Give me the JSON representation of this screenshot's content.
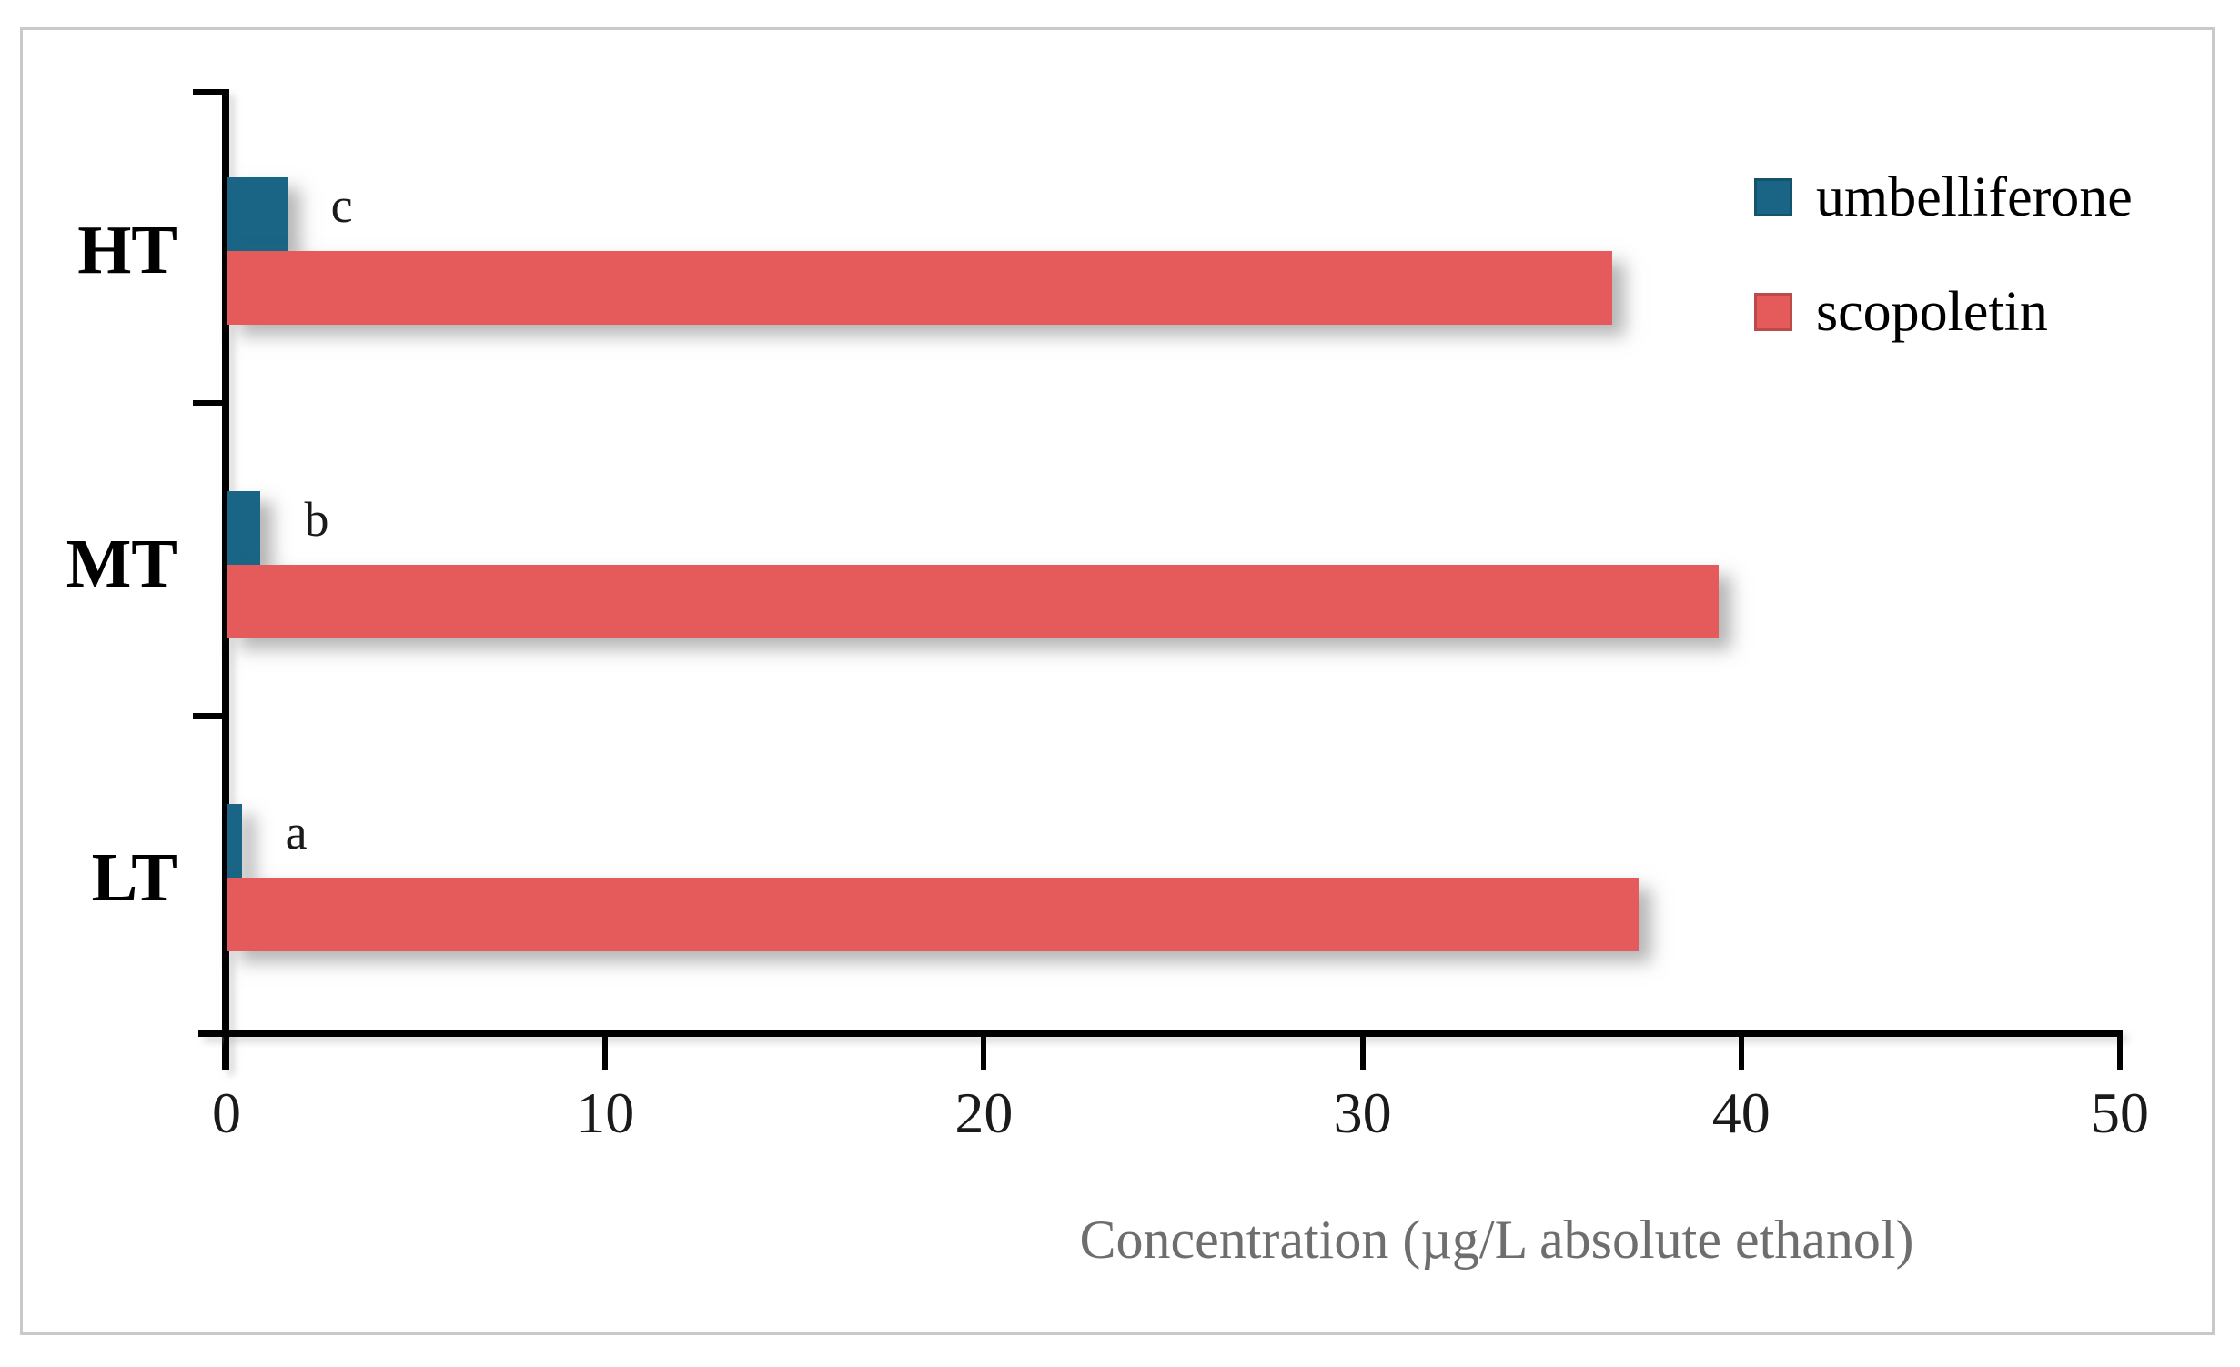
{
  "figure": {
    "background": "#ffffff",
    "border_color": "#c9c9c9"
  },
  "chart_data": {
    "type": "bar",
    "orientation": "horizontal",
    "title": "",
    "xlabel": "Concentration (µg/L absolute ethanol)",
    "xlabel_color": "#6e6e6e",
    "categories": [
      "HT",
      "MT",
      "LT"
    ],
    "series": [
      {
        "name": "umbelliferone",
        "color": "#1A6585",
        "values": [
          1.6,
          0.9,
          0.4
        ],
        "bar_labels": [
          "c",
          "b",
          "a"
        ]
      },
      {
        "name": "scopoletin",
        "color": "#E55B5B",
        "values": [
          36.6,
          39.4,
          37.3
        ],
        "bar_labels": [
          "",
          "",
          ""
        ]
      }
    ],
    "xlim": [
      0,
      50
    ],
    "xticks": [
      0,
      10,
      20,
      30,
      40,
      50
    ],
    "grid": false,
    "legend_position": "top-right",
    "axis_color": "#000000"
  }
}
